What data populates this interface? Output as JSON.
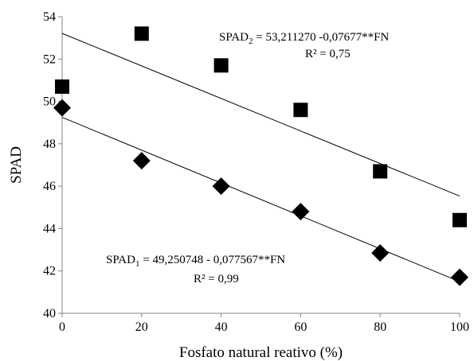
{
  "chart_data": {
    "type": "scatter",
    "title": "",
    "xlabel": "Fosfato natural reativo (%)",
    "ylabel": "SPAD",
    "xlim": [
      0,
      100
    ],
    "ylim": [
      40,
      54
    ],
    "x_ticks": [
      "0",
      "20",
      "40",
      "60",
      "80",
      "100"
    ],
    "y_ticks": [
      "40",
      "42",
      "44",
      "46",
      "48",
      "50",
      "52",
      "54"
    ],
    "grid": false,
    "legend": "none",
    "series": [
      {
        "marker": "square",
        "x": [
          0,
          20,
          40,
          60,
          80,
          100
        ],
        "y": [
          50.7,
          53.2,
          51.7,
          49.6,
          46.7,
          44.4
        ],
        "trendline": {
          "intercept": 53.21127,
          "slope": -0.07677
        },
        "equation": {
          "lhs_main": "SPAD",
          "lhs_sub": "2",
          "rhs": " = 53,211270 -0,07677**FN",
          "r2": "R² = 0,75"
        }
      },
      {
        "marker": "diamond",
        "x": [
          0,
          20,
          40,
          60,
          80,
          100
        ],
        "y": [
          49.7,
          47.2,
          46.0,
          44.8,
          42.85,
          41.7
        ],
        "trendline": {
          "intercept": 49.250748,
          "slope": -0.077567
        },
        "equation": {
          "lhs_main": "SPAD",
          "lhs_sub": "1",
          "rhs": " = 49,250748 - 0,077567**FN",
          "r2": "R² = 0,99"
        }
      }
    ],
    "colors": {
      "marker": "#000000",
      "line": "#000000",
      "axis": "#868686"
    }
  }
}
